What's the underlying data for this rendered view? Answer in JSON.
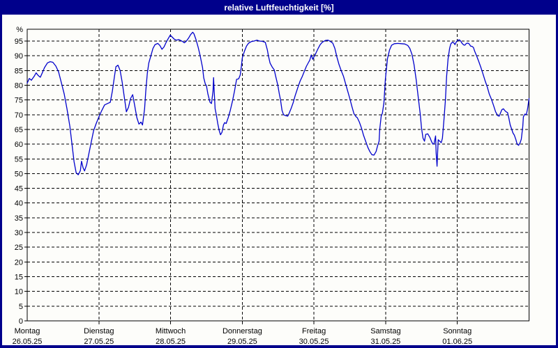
{
  "window": {
    "title": "relative Luftfeuchtigkeit [%]"
  },
  "colors": {
    "titlebar_background": "#00008b",
    "window_border": "#00008b",
    "plot_background": "#fdfdfa",
    "grid_color": "#000000",
    "line_color": "#0000cc",
    "title_text": "#ffffff"
  },
  "chart_data": {
    "type": "line",
    "title": "relative Luftfeuchtigkeit [%]",
    "xlabel": "",
    "ylabel": "%",
    "ylim": [
      0,
      100
    ],
    "grid": true,
    "y_ticks": [
      0,
      5,
      10,
      15,
      20,
      25,
      30,
      35,
      40,
      45,
      50,
      55,
      60,
      65,
      70,
      75,
      80,
      85,
      90,
      95
    ],
    "x_days": [
      {
        "label": "Montag",
        "date": "26.05.25"
      },
      {
        "label": "Dienstag",
        "date": "27.05.25"
      },
      {
        "label": "Mittwoch",
        "date": "28.05.25"
      },
      {
        "label": "Donnerstag",
        "date": "29.05.25"
      },
      {
        "label": "Freitag",
        "date": "30.05.25"
      },
      {
        "label": "Samstag",
        "date": "31.05.25"
      },
      {
        "label": "Sonntag",
        "date": "01.06.25"
      }
    ],
    "x_unit": "hours_since_monday_00h",
    "series": [
      {
        "name": "relative Luftfeuchtigkeit",
        "unit": "%",
        "color": "#0000cc",
        "points": [
          [
            0,
            80.7
          ],
          [
            0.7,
            82.3
          ],
          [
            1.4,
            81.7
          ],
          [
            2.3,
            83
          ],
          [
            3,
            84.2
          ],
          [
            3.7,
            83.3
          ],
          [
            4.4,
            82.7
          ],
          [
            5.1,
            84.3
          ],
          [
            5.8,
            86
          ],
          [
            6.8,
            87.6
          ],
          [
            7.7,
            88
          ],
          [
            8.6,
            87.8
          ],
          [
            9.6,
            86.5
          ],
          [
            10.5,
            84.5
          ],
          [
            11.4,
            81
          ],
          [
            12.4,
            77
          ],
          [
            13.3,
            72
          ],
          [
            14.3,
            66
          ],
          [
            15,
            60
          ],
          [
            15.7,
            54
          ],
          [
            16.4,
            50.3
          ],
          [
            17.1,
            49.6
          ],
          [
            17.8,
            51
          ],
          [
            18.2,
            54.2
          ],
          [
            18.7,
            52
          ],
          [
            19.2,
            50.9
          ],
          [
            19.9,
            53
          ],
          [
            20.6,
            56.5
          ],
          [
            21.3,
            60
          ],
          [
            22.2,
            64.5
          ],
          [
            23.1,
            67
          ],
          [
            24.1,
            69.5
          ],
          [
            25,
            71.5
          ],
          [
            25.9,
            73.3
          ],
          [
            26.9,
            73.8
          ],
          [
            27.8,
            74.2
          ],
          [
            28.5,
            78
          ],
          [
            29.2,
            83
          ],
          [
            29.7,
            86.3
          ],
          [
            30.4,
            86.8
          ],
          [
            31.1,
            85
          ],
          [
            31.8,
            81
          ],
          [
            32.5,
            76
          ],
          [
            33.2,
            71
          ],
          [
            33.9,
            72.5
          ],
          [
            34.6,
            75.5
          ],
          [
            35.3,
            76.8
          ],
          [
            36,
            73
          ],
          [
            36.7,
            69
          ],
          [
            37.4,
            66.8
          ],
          [
            38.1,
            67.5
          ],
          [
            38.6,
            66.5
          ],
          [
            39.3,
            72
          ],
          [
            39.7,
            78
          ],
          [
            40.2,
            84
          ],
          [
            40.7,
            87.5
          ],
          [
            41.4,
            90
          ],
          [
            42.1,
            92.5
          ],
          [
            42.8,
            93.8
          ],
          [
            43.7,
            94.2
          ],
          [
            44.4,
            93.5
          ],
          [
            45.1,
            92.2
          ],
          [
            45.8,
            93
          ],
          [
            46.5,
            94.5
          ],
          [
            47.2,
            95.8
          ],
          [
            47.9,
            97
          ],
          [
            48.6,
            96.3
          ],
          [
            49.3,
            95.6
          ],
          [
            50,
            95.3
          ],
          [
            50.7,
            95.5
          ],
          [
            51.4,
            95.2
          ],
          [
            52.1,
            94.8
          ],
          [
            52.6,
            94.4
          ],
          [
            53.3,
            95
          ],
          [
            54,
            96
          ],
          [
            54.7,
            97.2
          ],
          [
            55.4,
            98
          ],
          [
            55.8,
            97.5
          ],
          [
            56.5,
            95.5
          ],
          [
            57.2,
            93
          ],
          [
            57.9,
            90
          ],
          [
            58.7,
            86
          ],
          [
            59.1,
            82.5
          ],
          [
            59.6,
            80.5
          ],
          [
            60,
            79.8
          ],
          [
            60.5,
            77
          ],
          [
            61.2,
            74.2
          ],
          [
            61.7,
            73.8
          ],
          [
            62.2,
            78
          ],
          [
            62.4,
            82.6
          ],
          [
            62.6,
            78
          ],
          [
            62.9,
            72
          ],
          [
            63.3,
            70
          ],
          [
            63.8,
            67
          ],
          [
            64.3,
            64.5
          ],
          [
            64.7,
            63.2
          ],
          [
            65.2,
            64
          ],
          [
            65.7,
            66.5
          ],
          [
            66.1,
            67.3
          ],
          [
            66.6,
            67
          ],
          [
            67.3,
            69
          ],
          [
            68,
            71.5
          ],
          [
            68.7,
            74.5
          ],
          [
            69.4,
            78
          ],
          [
            70.1,
            82
          ],
          [
            70.8,
            82.2
          ],
          [
            71.3,
            83.5
          ],
          [
            71.7,
            86.5
          ],
          [
            72,
            89.3
          ],
          [
            72.7,
            91.5
          ],
          [
            73.4,
            93.3
          ],
          [
            74.1,
            94.3
          ],
          [
            75,
            94.8
          ],
          [
            75.9,
            95
          ],
          [
            76.9,
            95.3
          ],
          [
            77.8,
            95
          ],
          [
            78.7,
            94.9
          ],
          [
            79.7,
            94.6
          ],
          [
            80.4,
            92
          ],
          [
            80.8,
            89.8
          ],
          [
            81.3,
            87.5
          ],
          [
            82,
            86.2
          ],
          [
            82.7,
            85.2
          ],
          [
            83.2,
            83
          ],
          [
            83.9,
            80
          ],
          [
            84.4,
            77
          ],
          [
            84.8,
            75
          ],
          [
            85.3,
            71.5
          ],
          [
            85.8,
            70
          ],
          [
            86.5,
            69.7
          ],
          [
            87.2,
            69.5
          ],
          [
            87.6,
            70.3
          ],
          [
            88.3,
            72
          ],
          [
            89,
            74
          ],
          [
            89.7,
            76.5
          ],
          [
            90.7,
            79.5
          ],
          [
            91.4,
            81.5
          ],
          [
            92.1,
            83
          ],
          [
            92.8,
            84.8
          ],
          [
            93.5,
            86.5
          ],
          [
            94.2,
            87.8
          ],
          [
            94.6,
            88.5
          ],
          [
            95.1,
            90.3
          ],
          [
            95.6,
            88.8
          ],
          [
            96,
            89.6
          ],
          [
            96.7,
            91
          ],
          [
            97.4,
            92.5
          ],
          [
            98.1,
            93.8
          ],
          [
            98.8,
            94.6
          ],
          [
            99.8,
            95.2
          ],
          [
            100.7,
            95.3
          ],
          [
            101.6,
            94.8
          ],
          [
            102.3,
            94.3
          ],
          [
            103,
            92.5
          ],
          [
            103.7,
            89.5
          ],
          [
            104.4,
            87
          ],
          [
            105.1,
            85
          ],
          [
            105.9,
            83
          ],
          [
            106.6,
            80.5
          ],
          [
            107.3,
            78
          ],
          [
            108,
            75.5
          ],
          [
            108.7,
            72.8
          ],
          [
            109.4,
            70.3
          ],
          [
            110.1,
            69.3
          ],
          [
            110.5,
            69
          ],
          [
            111.2,
            67.5
          ],
          [
            111.9,
            65.5
          ],
          [
            112.6,
            63
          ],
          [
            113.3,
            61
          ],
          [
            114,
            59
          ],
          [
            114.7,
            57.5
          ],
          [
            115.4,
            56.4
          ],
          [
            116.1,
            56.3
          ],
          [
            116.8,
            57.5
          ],
          [
            117.3,
            59.5
          ],
          [
            117.8,
            61
          ],
          [
            118,
            65
          ],
          [
            118.5,
            69.5
          ],
          [
            118.9,
            70.5
          ],
          [
            119.4,
            74
          ],
          [
            119.9,
            82
          ],
          [
            120.6,
            89
          ],
          [
            121.3,
            92
          ],
          [
            122,
            93.6
          ],
          [
            122.9,
            94.1
          ],
          [
            124.1,
            94.2
          ],
          [
            125.3,
            94.1
          ],
          [
            126.4,
            94
          ],
          [
            127.4,
            93.5
          ],
          [
            128.1,
            92.5
          ],
          [
            128.8,
            90.5
          ],
          [
            129.5,
            87
          ],
          [
            130.2,
            82
          ],
          [
            130.9,
            76
          ],
          [
            131.6,
            70
          ],
          [
            132,
            65.5
          ],
          [
            132.5,
            62
          ],
          [
            133,
            61
          ],
          [
            133.4,
            63.3
          ],
          [
            134.1,
            63.5
          ],
          [
            134.8,
            62.3
          ],
          [
            135.3,
            61
          ],
          [
            135.8,
            60
          ],
          [
            136.2,
            60.2
          ],
          [
            136.7,
            62.8
          ],
          [
            136.9,
            57
          ],
          [
            137.2,
            52.5
          ],
          [
            137.4,
            57
          ],
          [
            137.6,
            61.5
          ],
          [
            138.1,
            61
          ],
          [
            138.6,
            60.5
          ],
          [
            139,
            62
          ],
          [
            139.5,
            68
          ],
          [
            140,
            75
          ],
          [
            140.4,
            83
          ],
          [
            140.9,
            89
          ],
          [
            141.4,
            92.5
          ],
          [
            141.8,
            94
          ],
          [
            142.3,
            94.6
          ],
          [
            142.8,
            94.4
          ],
          [
            143.2,
            93.8
          ],
          [
            143.7,
            94.8
          ],
          [
            144.2,
            95.3
          ],
          [
            144.7,
            95.4
          ],
          [
            145.1,
            95
          ],
          [
            145.6,
            94.2
          ],
          [
            146.1,
            93.7
          ],
          [
            146.5,
            93.6
          ],
          [
            147,
            94.2
          ],
          [
            147.5,
            94.3
          ],
          [
            148,
            94
          ],
          [
            148.4,
            93.3
          ],
          [
            148.9,
            93.2
          ],
          [
            149.4,
            92.8
          ],
          [
            149.8,
            91.5
          ],
          [
            150.5,
            89.8
          ],
          [
            151.2,
            88
          ],
          [
            151.9,
            86
          ],
          [
            152.6,
            83.8
          ],
          [
            153.3,
            81.5
          ],
          [
            154,
            79.5
          ],
          [
            154.7,
            77
          ],
          [
            155.4,
            75.3
          ],
          [
            156.1,
            73.2
          ],
          [
            156.8,
            71
          ],
          [
            157.5,
            69.7
          ],
          [
            158,
            69.5
          ],
          [
            158.4,
            70.5
          ],
          [
            158.9,
            71.7
          ],
          [
            159.4,
            72
          ],
          [
            159.8,
            71.5
          ],
          [
            160.3,
            71
          ],
          [
            160.8,
            70.7
          ],
          [
            161.2,
            69
          ],
          [
            161.7,
            66.5
          ],
          [
            162.2,
            65
          ],
          [
            162.6,
            63.8
          ],
          [
            163.1,
            63
          ],
          [
            163.6,
            61.5
          ],
          [
            164,
            60
          ],
          [
            164.5,
            59.6
          ],
          [
            165,
            60.5
          ],
          [
            165.4,
            61.7
          ],
          [
            165.9,
            66
          ],
          [
            166.1,
            69.3
          ],
          [
            166.6,
            70.2
          ],
          [
            167.1,
            70
          ],
          [
            167.5,
            72
          ],
          [
            168,
            75.5
          ]
        ]
      }
    ]
  }
}
